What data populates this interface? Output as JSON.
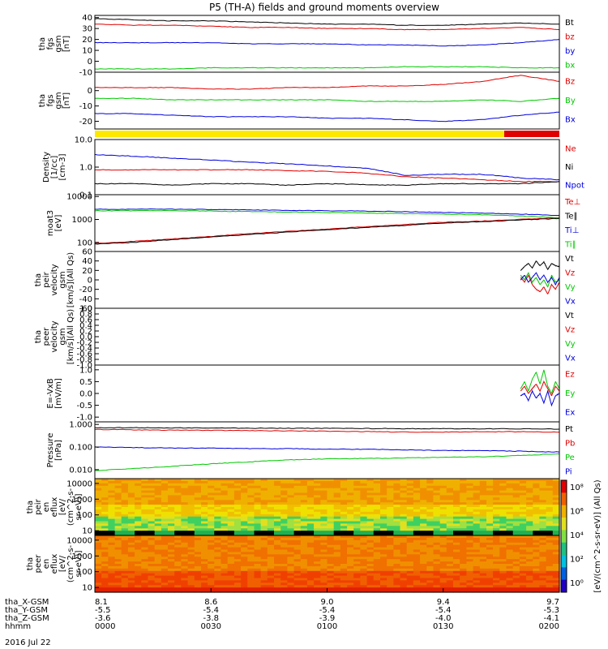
{
  "title": "P5 (TH-A) fields and ground moments overview",
  "date_label": "2016 Jul 22",
  "colors": {
    "black": "#000000",
    "red": "#e00000",
    "blue": "#0000dd",
    "green": "#00c800",
    "yellow": "#ffe800",
    "barred": "#e00000"
  },
  "footer": {
    "rows": [
      {
        "label": "tha_X-GSM",
        "values": [
          "8.1",
          "8.6",
          "9.0",
          "9.4",
          "9.7"
        ]
      },
      {
        "label": "tha_Y-GSM",
        "values": [
          "-5.5",
          "-5.4",
          "-5.4",
          "-5.4",
          "-5.3"
        ]
      },
      {
        "label": "tha_Z-GSM",
        "values": [
          "-3.6",
          "-3.8",
          "-3.9",
          "-4.0",
          "-4.1"
        ]
      },
      {
        "label": "hhmm",
        "values": [
          "0000",
          "0030",
          "0100",
          "0130",
          "0200"
        ]
      }
    ]
  },
  "chart_data": [
    {
      "type": "line",
      "ylabel_lines": [
        "tha",
        "fgs",
        "gsm",
        "[nT]"
      ],
      "ylim": [
        -10,
        42
      ],
      "ticks": [
        "40",
        "30",
        "20",
        "10",
        "0",
        "-10"
      ],
      "tick_values": [
        40,
        30,
        20,
        10,
        0,
        -10
      ],
      "x": [
        0,
        10,
        20,
        30,
        40,
        50,
        60,
        70,
        80,
        90,
        100,
        110,
        120
      ],
      "series": [
        {
          "name": "Bt",
          "color": "black",
          "values": [
            39,
            38,
            37,
            37,
            36,
            35,
            34,
            34,
            33,
            33,
            34,
            35,
            34
          ]
        },
        {
          "name": "bz",
          "color": "red",
          "values": [
            34,
            33,
            33,
            32,
            31,
            31,
            30,
            30,
            29,
            29,
            30,
            31,
            29
          ]
        },
        {
          "name": "by",
          "color": "blue",
          "values": [
            17,
            17,
            17,
            17,
            16,
            16,
            16,
            15,
            15,
            14,
            15,
            17,
            20
          ]
        },
        {
          "name": "bx",
          "color": "green",
          "values": [
            -7,
            -7,
            -7,
            -6,
            -6,
            -6,
            -6,
            -6,
            -5,
            -5,
            -5,
            -6,
            -6
          ]
        }
      ]
    },
    {
      "type": "line",
      "ylabel_lines": [
        "tha",
        "fgs",
        "gsm",
        "[nT]"
      ],
      "ylim": [
        -25,
        12
      ],
      "ticks": [
        "0",
        "-10",
        "-20"
      ],
      "tick_values": [
        0,
        -10,
        -20
      ],
      "x": [
        0,
        10,
        20,
        30,
        40,
        50,
        60,
        70,
        80,
        90,
        100,
        110,
        120
      ],
      "series": [
        {
          "name": "Bz",
          "color": "red",
          "values": [
            2,
            2,
            2,
            1,
            1,
            2,
            2,
            3,
            3,
            4,
            6,
            10,
            6
          ]
        },
        {
          "name": "By",
          "color": "green",
          "values": [
            -5,
            -5,
            -6,
            -6,
            -6,
            -6,
            -6,
            -7,
            -7,
            -7,
            -6,
            -7,
            -5
          ]
        },
        {
          "name": "Bx",
          "color": "blue",
          "values": [
            -15,
            -15,
            -16,
            -17,
            -17,
            -17,
            -18,
            -18,
            -19,
            -20,
            -19,
            -16,
            -14
          ]
        }
      ]
    },
    {
      "type": "line",
      "log": true,
      "ylabel_lines": [
        "Density",
        "[1/cc]",
        "[cm-3]"
      ],
      "ylim": [
        0.1,
        10
      ],
      "ticks": [
        "10.0",
        "1.0",
        "0.1"
      ],
      "tick_values": [
        10,
        1,
        0.1
      ],
      "x": [
        0,
        10,
        20,
        30,
        40,
        50,
        60,
        70,
        80,
        90,
        100,
        110,
        120
      ],
      "series": [
        {
          "name": "Ne",
          "color": "red",
          "values": [
            0.8,
            0.8,
            0.8,
            0.8,
            0.8,
            0.75,
            0.7,
            0.6,
            0.45,
            0.4,
            0.35,
            0.3,
            0.3
          ]
        },
        {
          "name": "Ni",
          "color": "black",
          "values": [
            0.25,
            0.25,
            0.22,
            0.25,
            0.25,
            0.22,
            0.25,
            0.23,
            0.22,
            0.25,
            0.25,
            0.25,
            0.3
          ]
        },
        {
          "name": "Npot",
          "color": "blue",
          "values": [
            2.8,
            2.5,
            2.1,
            1.8,
            1.5,
            1.3,
            1.1,
            0.9,
            0.5,
            0.55,
            0.55,
            0.4,
            0.35
          ]
        }
      ]
    },
    {
      "type": "line",
      "log": true,
      "ylabel_lines": [
        "moat3",
        "[eV]"
      ],
      "ylim": [
        40,
        12000
      ],
      "ticks": [
        "10000",
        "1000",
        "100"
      ],
      "tick_values": [
        10000,
        1000,
        100
      ],
      "x": [
        0,
        10,
        20,
        30,
        40,
        50,
        60,
        70,
        80,
        90,
        100,
        110,
        120
      ],
      "series": [
        {
          "name": "Te⊥",
          "color": "red",
          "values": [
            90,
            110,
            140,
            180,
            240,
            300,
            380,
            480,
            600,
            750,
            850,
            1000,
            1200
          ]
        },
        {
          "name": "Te∥",
          "color": "black",
          "values": [
            85,
            100,
            130,
            170,
            220,
            280,
            350,
            450,
            550,
            700,
            800,
            950,
            1100
          ]
        },
        {
          "name": "Ti⊥",
          "color": "blue",
          "values": [
            2800,
            2800,
            2800,
            2700,
            2600,
            2500,
            2400,
            2300,
            2200,
            2000,
            1900,
            1700,
            1500
          ]
        },
        {
          "name": "Ti∥",
          "color": "green",
          "values": [
            2400,
            2400,
            2400,
            2300,
            2200,
            2100,
            2000,
            1900,
            1800,
            1700,
            1600,
            1400,
            1200
          ]
        }
      ]
    },
    {
      "type": "line",
      "ylabel_lines": [
        "tha",
        "peir",
        "velocity",
        "gsm",
        "[km/s](All Qs)"
      ],
      "ylim": [
        -60,
        60
      ],
      "ticks": [
        "60",
        "40",
        "20",
        "0",
        "-20",
        "-40",
        "-60"
      ],
      "tick_values": [
        60,
        40,
        20,
        0,
        -20,
        -40,
        -60
      ],
      "x": [
        110,
        111,
        112,
        113,
        114,
        115,
        116,
        117,
        118,
        119,
        120
      ],
      "series": [
        {
          "name": "Vt",
          "color": "black",
          "values": [
            20,
            28,
            35,
            25,
            40,
            30,
            38,
            22,
            35,
            30,
            28
          ]
        },
        {
          "name": "Vz",
          "color": "red",
          "values": [
            5,
            -5,
            10,
            -10,
            -20,
            -25,
            -15,
            -30,
            -10,
            -20,
            -5
          ]
        },
        {
          "name": "Vy",
          "color": "green",
          "values": [
            10,
            0,
            15,
            -5,
            5,
            -10,
            0,
            -15,
            10,
            -5,
            0
          ]
        },
        {
          "name": "Vx",
          "color": "blue",
          "values": [
            0,
            10,
            -5,
            5,
            15,
            0,
            10,
            -5,
            5,
            -10,
            5
          ]
        }
      ]
    },
    {
      "type": "line",
      "ylabel_lines": [
        "tha",
        "peer",
        "velocity",
        "gsm",
        "[km/s](All Qs)"
      ],
      "ylim": [
        -1,
        1
      ],
      "ticks": [
        "1.0",
        "0.8",
        "0.6",
        "0.4",
        "0.2",
        "0.0",
        "-0.2",
        "-0.4",
        "-0.6",
        "-0.8",
        "-1.0"
      ],
      "tick_values": [
        1,
        0.8,
        0.6,
        0.4,
        0.2,
        0,
        -0.2,
        -0.4,
        -0.6,
        -0.8,
        -1
      ],
      "x": [],
      "series": [
        {
          "name": "Vt",
          "color": "black",
          "values": []
        },
        {
          "name": "Vz",
          "color": "red",
          "values": []
        },
        {
          "name": "Vy",
          "color": "green",
          "values": []
        },
        {
          "name": "Vx",
          "color": "blue",
          "values": []
        }
      ]
    },
    {
      "type": "line",
      "ylabel_lines": [
        "E=-VxB",
        "[mV/m]"
      ],
      "ylim": [
        -1.2,
        1.2
      ],
      "ticks": [
        "1.0",
        "0.5",
        "0.0",
        "-0.5",
        "-1.0"
      ],
      "tick_values": [
        1,
        0.5,
        0,
        -0.5,
        -1
      ],
      "x": [
        110,
        111,
        112,
        113,
        114,
        115,
        116,
        117,
        118,
        119,
        120
      ],
      "series": [
        {
          "name": "Ez",
          "color": "red",
          "values": [
            0.1,
            0.3,
            0.0,
            0.2,
            0.4,
            0.1,
            0.5,
            0.2,
            -0.1,
            0.3,
            0.1
          ]
        },
        {
          "name": "Ey",
          "color": "green",
          "values": [
            0.2,
            0.5,
            0.1,
            0.6,
            0.9,
            0.4,
            1.0,
            0.3,
            0.0,
            0.5,
            0.2
          ]
        },
        {
          "name": "Ex",
          "color": "blue",
          "values": [
            -0.1,
            0.0,
            -0.3,
            0.1,
            -0.2,
            0.0,
            -0.4,
            0.1,
            -0.5,
            -0.1,
            0.0
          ]
        }
      ]
    },
    {
      "type": "line",
      "log": true,
      "ylabel_lines": [
        "Pressure",
        "[nPa]"
      ],
      "ylim": [
        0.004,
        1.3
      ],
      "ticks": [
        "1.000",
        "0.100",
        "0.010"
      ],
      "tick_values": [
        1,
        0.1,
        0.01
      ],
      "x": [
        0,
        10,
        20,
        30,
        40,
        50,
        60,
        70,
        80,
        90,
        100,
        110,
        120
      ],
      "series": [
        {
          "name": "Pt",
          "color": "black",
          "values": [
            0.72,
            0.72,
            0.7,
            0.7,
            0.68,
            0.68,
            0.67,
            0.66,
            0.65,
            0.65,
            0.64,
            0.64,
            0.62
          ]
        },
        {
          "name": "Pb",
          "color": "red",
          "values": [
            0.6,
            0.58,
            0.56,
            0.55,
            0.53,
            0.52,
            0.5,
            0.48,
            0.46,
            0.46,
            0.47,
            0.48,
            0.45
          ]
        },
        {
          "name": "Pe",
          "color": "green",
          "values": [
            0.009,
            0.011,
            0.014,
            0.018,
            0.022,
            0.027,
            0.03,
            0.031,
            0.033,
            0.035,
            0.037,
            0.042,
            0.05
          ]
        },
        {
          "name": "Pi",
          "color": "blue",
          "values": [
            0.1,
            0.095,
            0.09,
            0.09,
            0.085,
            0.085,
            0.08,
            0.08,
            0.075,
            0.07,
            0.07,
            0.065,
            0.06
          ]
        }
      ]
    },
    {
      "type": "heatmap",
      "ylabel_lines": [
        "tha",
        "peir",
        "en",
        "eflux",
        "[eV/",
        "(cm^2-s-",
        "sr-eV)]"
      ],
      "ylim": [
        5,
        20000
      ],
      "log": true,
      "ticks": [
        "10000",
        "1000",
        "100",
        "10"
      ],
      "tick_values": [
        10000,
        1000,
        100,
        10
      ]
    },
    {
      "type": "heatmap",
      "ylabel_lines": [
        "tha",
        "peer",
        "en",
        "eflux",
        "[eV/",
        "(cm^2-s-",
        "sr-eV)]"
      ],
      "ylim": [
        5,
        20000
      ],
      "log": true,
      "ticks": [
        "10000",
        "1000",
        "100",
        "10"
      ],
      "tick_values": [
        10000,
        1000,
        100,
        10
      ]
    }
  ],
  "colorbar": {
    "label": "[eV/(cm^2-s-sr-eV)] (All Qs)",
    "ticks": [
      "10⁸",
      "10⁶",
      "10⁴",
      "10²",
      "10⁰"
    ]
  }
}
